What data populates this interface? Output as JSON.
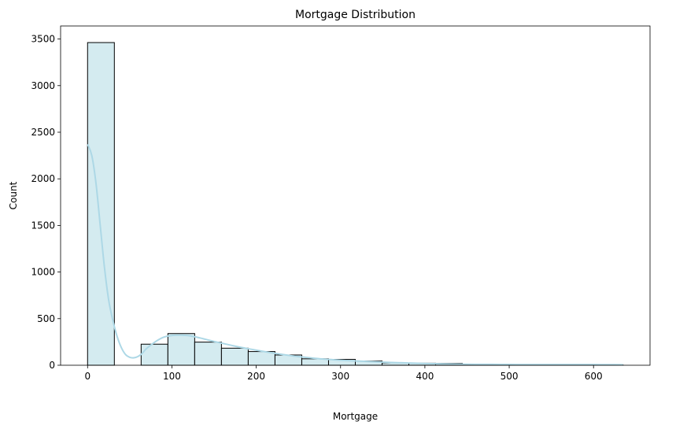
{
  "chart_data": {
    "type": "bar",
    "title": "Mortgage Distribution",
    "xlabel": "Mortgage",
    "ylabel": "Count",
    "xlim": [
      -32,
      667
    ],
    "ylim": [
      0,
      3640
    ],
    "xticks": [
      0,
      100,
      200,
      300,
      400,
      500,
      600
    ],
    "yticks": [
      0,
      500,
      1000,
      1500,
      2000,
      2500,
      3000,
      3500
    ],
    "bin_edges": [
      0,
      31.75,
      63.5,
      95.25,
      127,
      158.75,
      190.5,
      222.25,
      254,
      285.75,
      317.5,
      349.25,
      381,
      412.75,
      444.5,
      476.25,
      508,
      539.75,
      571.5,
      603.25,
      635
    ],
    "values": [
      3462,
      0,
      226,
      340,
      248,
      183,
      147,
      110,
      69,
      63,
      45,
      25,
      22,
      20,
      12,
      8,
      6,
      5,
      4,
      3
    ],
    "kde": {
      "x": [
        0,
        5,
        10,
        15,
        20,
        25,
        30,
        35,
        40,
        45,
        50,
        55,
        60,
        65,
        70,
        80,
        90,
        100,
        110,
        120,
        130,
        140,
        150,
        160,
        170,
        180,
        190,
        200,
        210,
        220,
        230,
        240,
        250,
        260,
        270,
        280,
        290,
        300,
        320,
        340,
        360,
        380,
        400,
        420,
        440,
        460,
        480,
        500,
        520,
        540,
        560,
        580,
        600,
        620,
        635
      ],
      "y": [
        2370,
        2250,
        1950,
        1500,
        1050,
        700,
        480,
        310,
        190,
        115,
        85,
        80,
        95,
        130,
        180,
        250,
        300,
        320,
        323,
        318,
        300,
        278,
        255,
        235,
        215,
        195,
        178,
        162,
        146,
        131,
        117,
        104,
        93,
        83,
        74,
        66,
        60,
        54,
        45,
        37,
        30,
        24,
        19,
        15,
        12,
        10,
        9,
        8,
        7,
        7,
        7,
        7,
        7,
        6,
        5
      ]
    },
    "bar_fill": "#d4ebf0",
    "bar_edge": "#000000",
    "kde_color": "#add8e6",
    "grid": false
  }
}
